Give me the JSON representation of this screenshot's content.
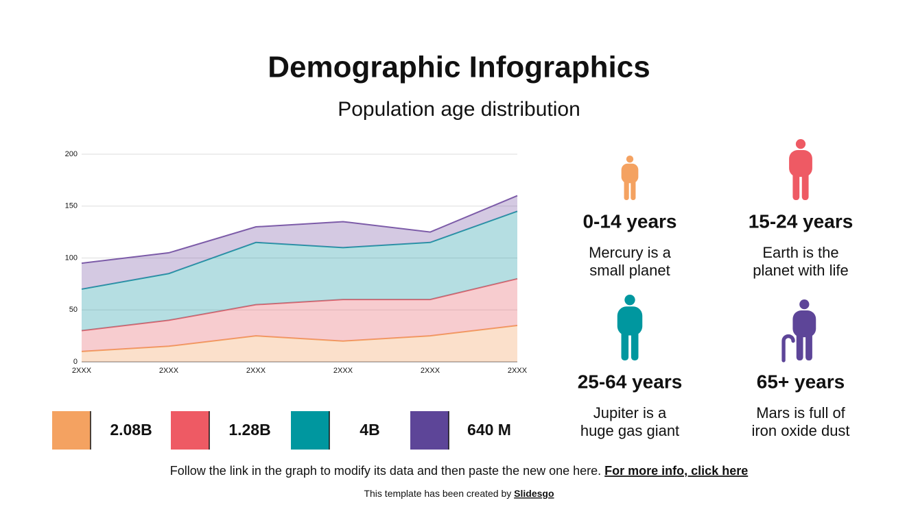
{
  "chart_data": {
    "type": "stacked-area",
    "title": "Demographic Infographics",
    "subtitle": "Population age distribution",
    "categories": [
      "2XXX",
      "2XXX",
      "2XXX",
      "2XXX",
      "2XXX",
      "2XXX"
    ],
    "series": [
      {
        "color": "#f4a261",
        "values": [
          10,
          15,
          25,
          20,
          25,
          35
        ]
      },
      {
        "color": "#e8636d",
        "values": [
          20,
          25,
          30,
          40,
          35,
          45
        ]
      },
      {
        "color": "#1e9aa6",
        "values": [
          40,
          45,
          60,
          50,
          55,
          65
        ]
      },
      {
        "color": "#7c5ba8",
        "values": [
          25,
          20,
          15,
          25,
          10,
          15
        ]
      }
    ],
    "ylim": [
      0,
      200
    ],
    "yticks": [
      0,
      50,
      100,
      150,
      200
    ],
    "grid": true
  },
  "stats": [
    {
      "label": "2.08B",
      "color": "#f4a261"
    },
    {
      "label": "1.28B",
      "color": "#ee5a64"
    },
    {
      "label": "4B",
      "color": "#00979f"
    },
    {
      "label": "640 M",
      "color": "#5d4598"
    }
  ],
  "groups": [
    {
      "heading": "0-14 years",
      "description": [
        "Mercury is a",
        "small planet"
      ],
      "color": "#f4a261",
      "icon": "child"
    },
    {
      "heading": "15-24 years",
      "description": [
        "Earth is the",
        "planet with life"
      ],
      "color": "#ee5a64",
      "icon": "youth"
    },
    {
      "heading": "25-64 years",
      "description": [
        "Jupiter is a",
        "huge gas giant"
      ],
      "color": "#00979f",
      "icon": "adult"
    },
    {
      "heading": "65+ years",
      "description": [
        "Mars is full of",
        "iron oxide dust"
      ],
      "color": "#5d4598",
      "icon": "elder"
    }
  ],
  "footer": {
    "text": "Follow the link in the graph to modify its data and then paste the new one here. ",
    "link": "For more info, click here",
    "credit": "This template has been created by ",
    "credit_link": "Slidesgo"
  }
}
